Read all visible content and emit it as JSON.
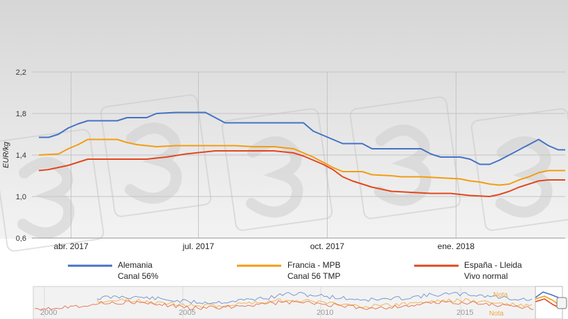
{
  "chart_data": {
    "type": "line",
    "ylabel": "EUR/kg",
    "ylim": [
      0.6,
      2.2
    ],
    "yticks": [
      "0,6",
      "1,0",
      "1,4",
      "1,8",
      "2,2"
    ],
    "xticks": [
      {
        "label": "abr. 2017",
        "x": "2017-04-01"
      },
      {
        "label": "jul. 2017",
        "x": "2017-07-01"
      },
      {
        "label": "oct. 2017",
        "x": "2017-10-01"
      },
      {
        "label": "ene. 2018",
        "x": "2018-01-01"
      }
    ],
    "xrange": [
      "2017-03-04",
      "2018-03-20"
    ],
    "grid": true,
    "legend_position": "bottom",
    "series": [
      {
        "name": "Alemania",
        "name_line2": "Canal 56%",
        "color": "#4472c4",
        "points": [
          [
            "2017-03-09",
            1.57
          ],
          [
            "2017-03-16",
            1.57
          ],
          [
            "2017-03-23",
            1.6
          ],
          [
            "2017-03-30",
            1.66
          ],
          [
            "2017-04-06",
            1.7
          ],
          [
            "2017-04-13",
            1.73
          ],
          [
            "2017-05-04",
            1.73
          ],
          [
            "2017-05-11",
            1.76
          ],
          [
            "2017-05-25",
            1.76
          ],
          [
            "2017-06-01",
            1.8
          ],
          [
            "2017-06-15",
            1.81
          ],
          [
            "2017-07-06",
            1.81
          ],
          [
            "2017-07-13",
            1.76
          ],
          [
            "2017-07-20",
            1.71
          ],
          [
            "2017-09-14",
            1.71
          ],
          [
            "2017-09-21",
            1.63
          ],
          [
            "2017-10-05",
            1.55
          ],
          [
            "2017-10-12",
            1.51
          ],
          [
            "2017-10-26",
            1.51
          ],
          [
            "2017-11-02",
            1.46
          ],
          [
            "2017-11-16",
            1.46
          ],
          [
            "2017-12-07",
            1.46
          ],
          [
            "2017-12-14",
            1.41
          ],
          [
            "2017-12-21",
            1.38
          ],
          [
            "2018-01-04",
            1.38
          ],
          [
            "2018-01-11",
            1.36
          ],
          [
            "2018-01-18",
            1.31
          ],
          [
            "2018-01-25",
            1.31
          ],
          [
            "2018-02-01",
            1.35
          ],
          [
            "2018-02-15",
            1.45
          ],
          [
            "2018-02-22",
            1.5
          ],
          [
            "2018-03-01",
            1.55
          ],
          [
            "2018-03-08",
            1.49
          ],
          [
            "2018-03-15",
            1.45
          ],
          [
            "2018-03-20",
            1.45
          ]
        ]
      },
      {
        "name": "Francia - MPB",
        "name_line2": "Canal 56 TMP",
        "color": "#f39c12",
        "points": [
          [
            "2017-03-09",
            1.4
          ],
          [
            "2017-03-23",
            1.41
          ],
          [
            "2017-03-30",
            1.46
          ],
          [
            "2017-04-06",
            1.5
          ],
          [
            "2017-04-13",
            1.55
          ],
          [
            "2017-04-27",
            1.55
          ],
          [
            "2017-05-04",
            1.55
          ],
          [
            "2017-05-11",
            1.52
          ],
          [
            "2017-05-18",
            1.5
          ],
          [
            "2017-06-01",
            1.48
          ],
          [
            "2017-06-15",
            1.49
          ],
          [
            "2017-06-29",
            1.49
          ],
          [
            "2017-07-13",
            1.49
          ],
          [
            "2017-07-27",
            1.49
          ],
          [
            "2017-08-10",
            1.48
          ],
          [
            "2017-08-24",
            1.48
          ],
          [
            "2017-09-07",
            1.46
          ],
          [
            "2017-09-14",
            1.42
          ],
          [
            "2017-09-21",
            1.38
          ],
          [
            "2017-10-05",
            1.28
          ],
          [
            "2017-10-12",
            1.24
          ],
          [
            "2017-10-26",
            1.24
          ],
          [
            "2017-11-02",
            1.21
          ],
          [
            "2017-11-16",
            1.2
          ],
          [
            "2017-11-23",
            1.19
          ],
          [
            "2017-12-07",
            1.19
          ],
          [
            "2017-12-21",
            1.18
          ],
          [
            "2018-01-04",
            1.17
          ],
          [
            "2018-01-11",
            1.15
          ],
          [
            "2018-01-18",
            1.14
          ],
          [
            "2018-01-25",
            1.12
          ],
          [
            "2018-02-01",
            1.11
          ],
          [
            "2018-02-08",
            1.12
          ],
          [
            "2018-02-15",
            1.16
          ],
          [
            "2018-02-22",
            1.19
          ],
          [
            "2018-03-01",
            1.23
          ],
          [
            "2018-03-08",
            1.25
          ],
          [
            "2018-03-20",
            1.25
          ]
        ]
      },
      {
        "name": "España - Lleida",
        "name_line2": "Vivo normal",
        "color": "#e2471d",
        "points": [
          [
            "2017-03-09",
            1.25
          ],
          [
            "2017-03-16",
            1.26
          ],
          [
            "2017-03-30",
            1.3
          ],
          [
            "2017-04-06",
            1.33
          ],
          [
            "2017-04-13",
            1.36
          ],
          [
            "2017-05-11",
            1.36
          ],
          [
            "2017-05-25",
            1.36
          ],
          [
            "2017-06-08",
            1.38
          ],
          [
            "2017-06-22",
            1.41
          ],
          [
            "2017-07-06",
            1.43
          ],
          [
            "2017-07-13",
            1.44
          ],
          [
            "2017-08-10",
            1.44
          ],
          [
            "2017-08-24",
            1.44
          ],
          [
            "2017-09-07",
            1.42
          ],
          [
            "2017-09-14",
            1.39
          ],
          [
            "2017-09-28",
            1.31
          ],
          [
            "2017-10-05",
            1.26
          ],
          [
            "2017-10-12",
            1.19
          ],
          [
            "2017-10-19",
            1.15
          ],
          [
            "2017-11-02",
            1.09
          ],
          [
            "2017-11-16",
            1.05
          ],
          [
            "2017-11-30",
            1.04
          ],
          [
            "2017-12-14",
            1.03
          ],
          [
            "2017-12-28",
            1.03
          ],
          [
            "2018-01-11",
            1.01
          ],
          [
            "2018-01-25",
            1.0
          ],
          [
            "2018-02-01",
            1.02
          ],
          [
            "2018-02-08",
            1.05
          ],
          [
            "2018-02-15",
            1.09
          ],
          [
            "2018-02-22",
            1.12
          ],
          [
            "2018-03-01",
            1.15
          ],
          [
            "2018-03-08",
            1.16
          ],
          [
            "2018-03-20",
            1.16
          ]
        ]
      }
    ],
    "navigator": {
      "year_labels": [
        "2000",
        "2005",
        "2010",
        "2015"
      ],
      "annotation_label": "Nota"
    }
  }
}
